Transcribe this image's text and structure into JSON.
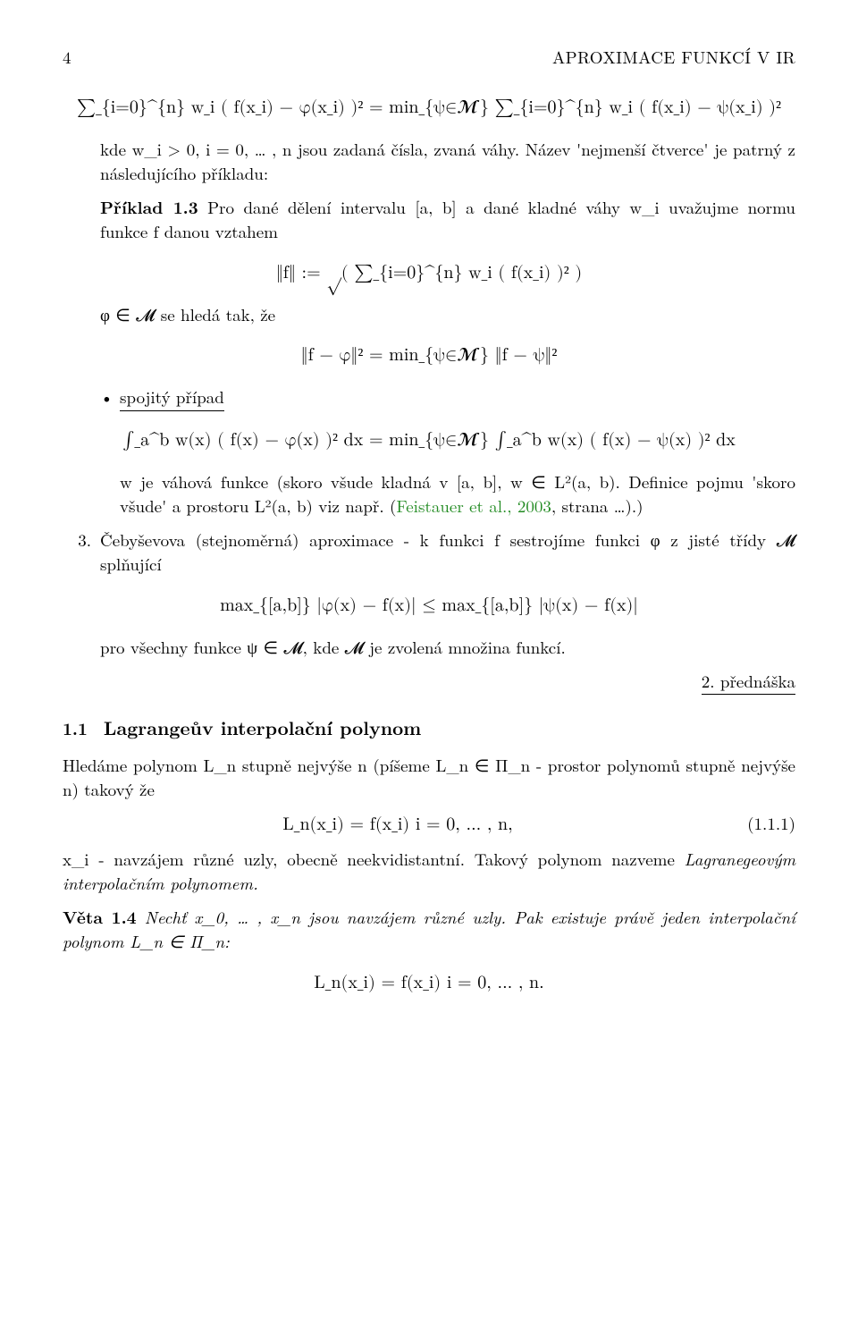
{
  "header": {
    "pagenum": "4",
    "title": "APROXIMACE FUNKCÍ V IR"
  },
  "eq1": "∑_{i=0}^{n} w_i ( f(x_i) − φ(x_i) )² = min_{ψ∈𝓜} ∑_{i=0}^{n} w_i ( f(x_i) − ψ(x_i) )²",
  "p1a": "kde w_i > 0, i = 0, … , n jsou zadaná čísla, zvaná váhy. Název 'nejmenší čtverce' je patrný z následujícího příkladu:",
  "priklad_label": "Příklad 1.3",
  "p1b": " Pro dané dělení intervalu [a, b] a dané kladné váhy w_i uvažujme normu funkce f danou vztahem",
  "eq2": "‖f‖ := √( ∑_{i=0}^{n} w_i ( f(x_i) )² )",
  "p2": "φ ∈ 𝓜 se hledá tak, že",
  "eq3": "‖f − φ‖² = min_{ψ∈𝓜} ‖f − ψ‖²",
  "bullet_label": "spojitý případ",
  "eq4": "∫_a^b w(x) ( f(x) − φ(x) )² dx = min_{ψ∈𝓜} ∫_a^b w(x) ( f(x) − ψ(x) )² dx",
  "p3a": "w je váhová funkce (skoro všude kladná v [a, b], w ∈ L²(a, b). Definice pojmu 'skoro všude' a prostoru L²(a, b) viz např. (",
  "p3_link": "Feistauer et al., 2003",
  "p3b": ", strana …).)",
  "item3_num": "3.",
  "item3_text": "Čebyševova (stejnoměrná) aproximace - k funkci f sestrojíme funkci φ z jisté třídy 𝓜 splňující",
  "eq5": "max_{[a,b]} |φ(x) − f(x)| ≤ max_{[a,b]} |ψ(x) − f(x)|",
  "p4": "pro všechny funkce ψ ∈ 𝓜, kde 𝓜 je zvolená množina funkcí.",
  "lecture": "2. přednáška",
  "sec_num": "1.1",
  "sec_title": "Lagrangeův interpolační polynom",
  "p5": "Hledáme polynom L_n stupně nejvýše n (píšeme L_n ∈ Π_n - prostor polynomů stupně nejvýše n) takový že",
  "eq6": "L_n(x_i) = f(x_i)      i = 0, … , n,",
  "eq6_num": "(1.1.1)",
  "p6a": "x_i - navzájem různé uzly, obecně neekvidistantní. Takový polynom nazveme ",
  "p6b": "Lagranegeovým interpolačním polynomem.",
  "veta_label": "Věta 1.4",
  "p7a": " Nechť x_0, … , x_n jsou navzájem různé uzly. Pak existuje právě jeden interpolační polynom L_n ∈ Π_n:",
  "eq7": "L_n(x_i) = f(x_i)      i = 0, … , n."
}
